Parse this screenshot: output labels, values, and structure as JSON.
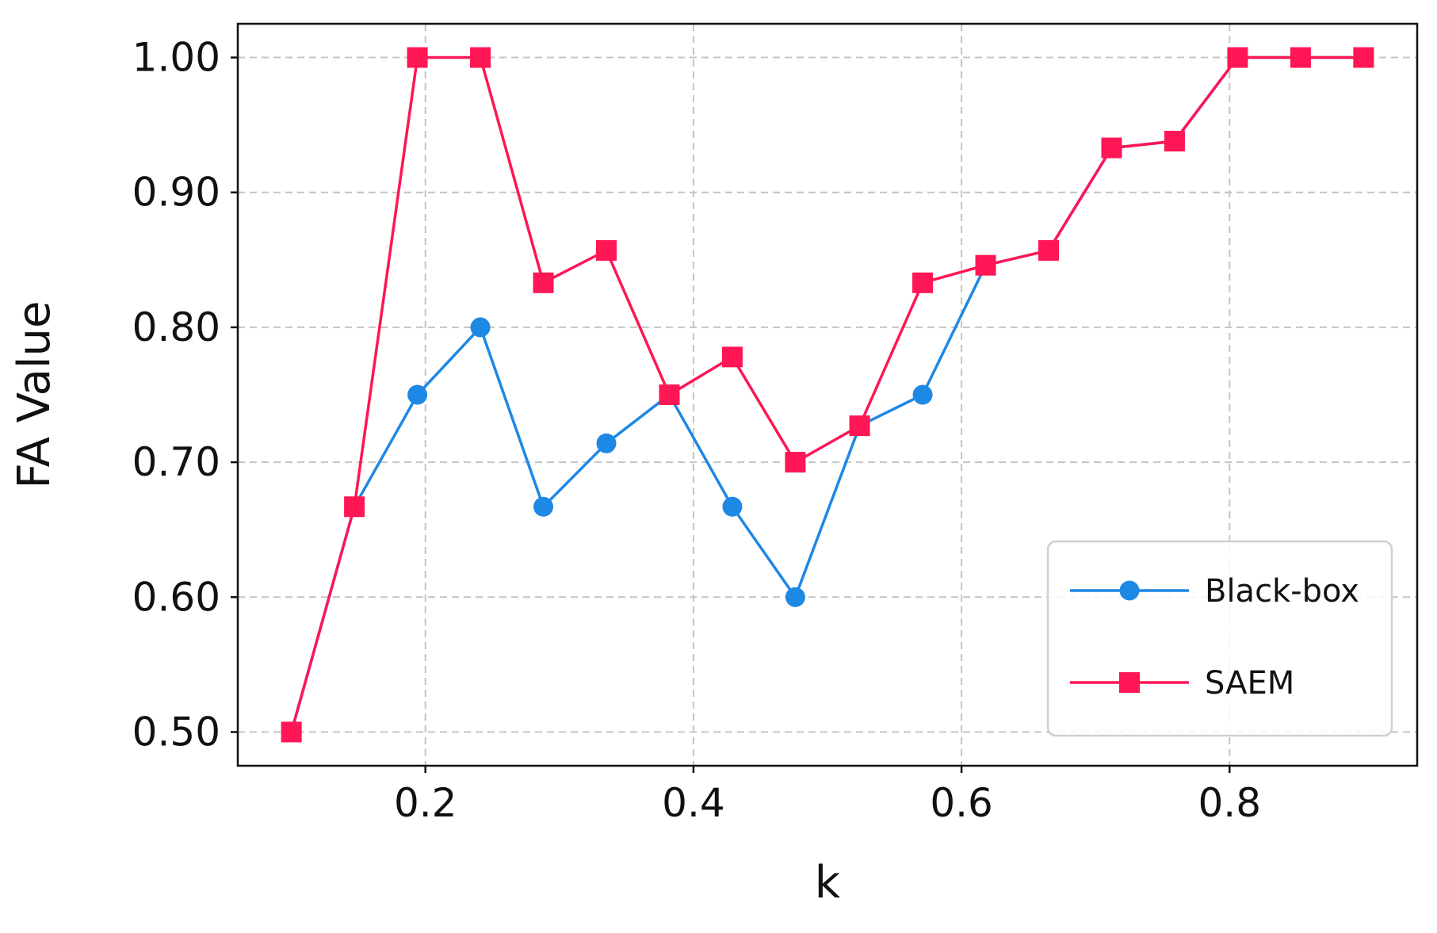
{
  "chart_data": {
    "type": "line",
    "xlabel": "k",
    "ylabel": "FA Value",
    "xlim": [
      0.06,
      0.94
    ],
    "ylim": [
      0.475,
      1.025
    ],
    "xticks": [
      0.2,
      0.4,
      0.6,
      0.8
    ],
    "xtick_labels": [
      "0.2",
      "0.4",
      "0.6",
      "0.8"
    ],
    "yticks": [
      0.5,
      0.6,
      0.7,
      0.8,
      0.9,
      1.0
    ],
    "ytick_labels": [
      "0.50",
      "0.60",
      "0.70",
      "0.80",
      "0.90",
      "1.00"
    ],
    "grid": true,
    "legend_position": "lower-right",
    "series": [
      {
        "name": "Black-box",
        "color": "#1e88e5",
        "marker": "circle",
        "x": [
          0.1,
          0.147,
          0.194,
          0.241,
          0.288,
          0.335,
          0.382,
          0.429,
          0.476,
          0.524,
          0.571,
          0.618,
          0.665,
          0.712,
          0.759,
          0.806,
          0.853,
          0.9
        ],
        "y": [
          0.5,
          0.667,
          0.75,
          0.8,
          0.667,
          0.714,
          0.75,
          0.667,
          0.6,
          0.727,
          0.75,
          0.846,
          0.857,
          0.933,
          0.938,
          1.0,
          1.0,
          1.0
        ]
      },
      {
        "name": "SAEM",
        "color": "#ff1654",
        "marker": "square",
        "x": [
          0.1,
          0.147,
          0.194,
          0.241,
          0.288,
          0.335,
          0.382,
          0.429,
          0.476,
          0.524,
          0.571,
          0.618,
          0.665,
          0.712,
          0.759,
          0.806,
          0.853,
          0.9
        ],
        "y": [
          0.5,
          0.667,
          1.0,
          1.0,
          0.833,
          0.857,
          0.75,
          0.778,
          0.7,
          0.727,
          0.833,
          0.846,
          0.857,
          0.933,
          0.938,
          1.0,
          1.0,
          1.0
        ]
      }
    ]
  }
}
